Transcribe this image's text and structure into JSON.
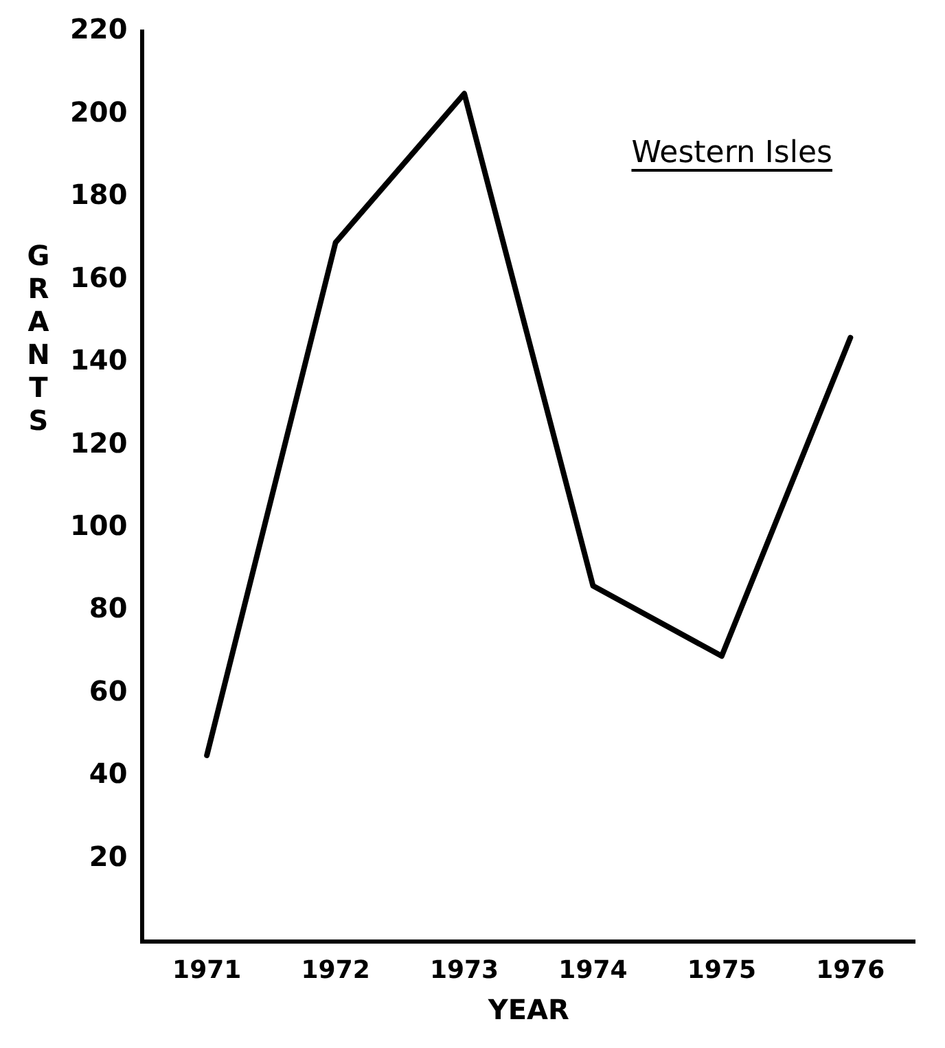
{
  "chart_data": {
    "type": "line",
    "title": "Western Isles",
    "xlabel": "YEAR",
    "ylabel": "GRANTS",
    "categories": [
      "1971",
      "1972",
      "1973",
      "1974",
      "1975",
      "1976"
    ],
    "series": [
      {
        "color": "#000000",
        "values": [
          45,
          169,
          205,
          86,
          69,
          146
        ]
      }
    ],
    "ylim": [
      0,
      220
    ],
    "yticks": [
      20,
      40,
      60,
      80,
      100,
      120,
      140,
      160,
      180,
      200,
      220
    ],
    "grid": false,
    "legend": false,
    "marker": "none",
    "line_style": "solid"
  }
}
